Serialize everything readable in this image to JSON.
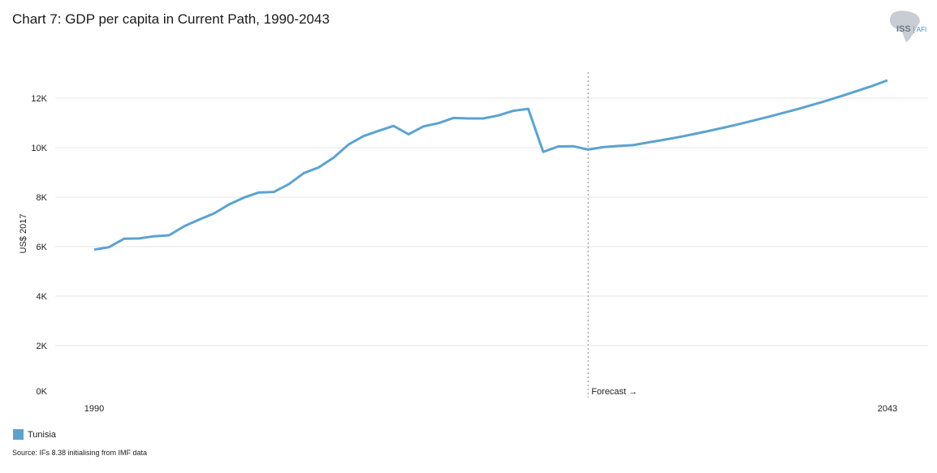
{
  "title": "Chart 7: GDP per capita in Current Path, 1990-2043",
  "logo": {
    "main": "ISS",
    "sub": "AFI"
  },
  "source": "Source: IFs 8.38 initialising from IMF data",
  "colors": {
    "series": "#5ba3cf",
    "grid": "#e6e6e6",
    "forecast_line": "#999999"
  },
  "chart_data": {
    "type": "line",
    "title": "Chart 7: GDP per capita in Current Path, 1990-2043",
    "xlabel": "",
    "ylabel": "US$ 2017",
    "ylim": [
      0,
      14000
    ],
    "xlim": [
      1990,
      2043
    ],
    "y_ticks": [
      {
        "value": 0,
        "label": "0K"
      },
      {
        "value": 2000,
        "label": "2K"
      },
      {
        "value": 4000,
        "label": "4K"
      },
      {
        "value": 6000,
        "label": "6K"
      },
      {
        "value": 8000,
        "label": "8K"
      },
      {
        "value": 10000,
        "label": "10K"
      },
      {
        "value": 12000,
        "label": "12K"
      }
    ],
    "x_ticks": [
      {
        "value": 1990,
        "label": "1990"
      },
      {
        "value": 2043,
        "label": "2043"
      }
    ],
    "grid": true,
    "legend_position": "bottom-left",
    "forecast": {
      "start_year": 2023,
      "label": "Forecast →"
    },
    "x": [
      1990,
      1991,
      1992,
      1993,
      1994,
      1995,
      1996,
      1997,
      1998,
      1999,
      2000,
      2001,
      2002,
      2003,
      2004,
      2005,
      2006,
      2007,
      2008,
      2009,
      2010,
      2011,
      2012,
      2013,
      2014,
      2015,
      2016,
      2017,
      2018,
      2019,
      2020,
      2021,
      2022,
      2023,
      2024,
      2025,
      2026,
      2027,
      2028,
      2029,
      2030,
      2031,
      2032,
      2033,
      2034,
      2035,
      2036,
      2037,
      2038,
      2039,
      2040,
      2041,
      2042,
      2043
    ],
    "series": [
      {
        "name": "Tunisia",
        "color": "#5ba3cf",
        "values": [
          5880,
          5980,
          6320,
          6330,
          6420,
          6460,
          6820,
          7090,
          7340,
          7700,
          7980,
          8190,
          8210,
          8520,
          8970,
          9200,
          9600,
          10130,
          10470,
          10680,
          10880,
          10540,
          10860,
          10990,
          11200,
          11180,
          11180,
          11300,
          11490,
          11570,
          9830,
          10050,
          10060,
          9920,
          10020,
          10070,
          10100,
          10210,
          10310,
          10420,
          10540,
          10670,
          10800,
          10940,
          11090,
          11240,
          11400,
          11560,
          11730,
          11910,
          12100,
          12300,
          12500,
          12720
        ]
      }
    ]
  },
  "legend": {
    "items": [
      {
        "label": "Tunisia",
        "color": "#5ba3cf"
      }
    ]
  }
}
